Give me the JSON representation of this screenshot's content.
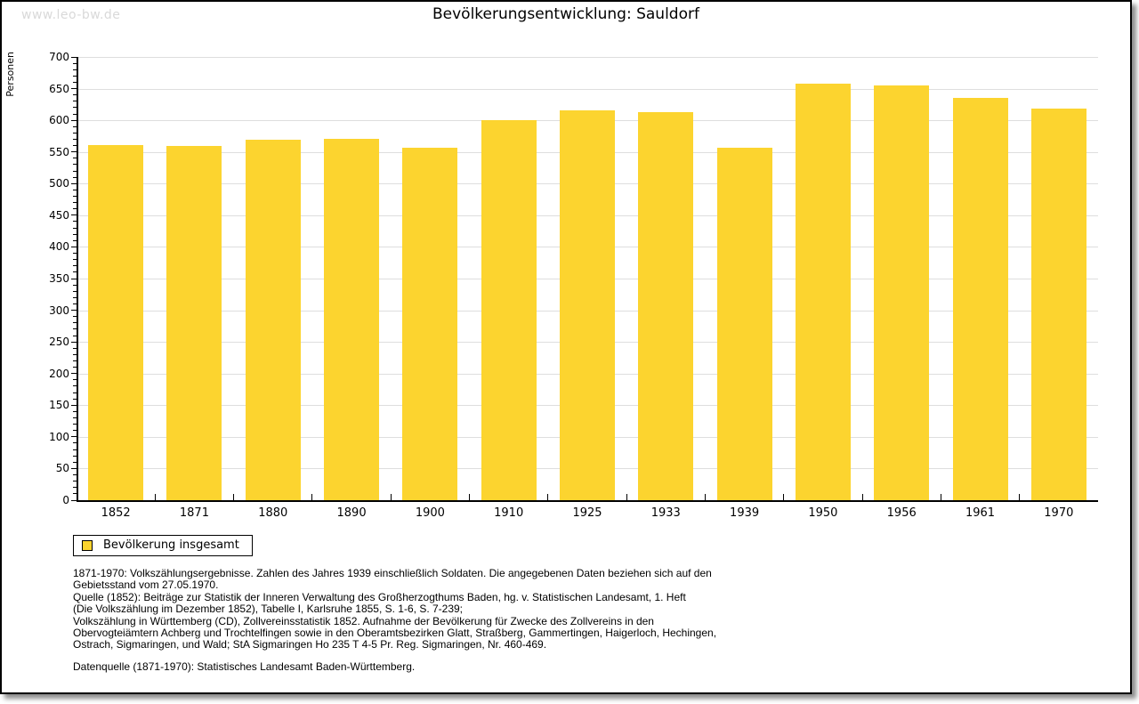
{
  "page": {
    "watermark": "www.leo-bw.de",
    "title": "Bevölkerungsentwicklung: Sauldorf"
  },
  "chart_data": {
    "type": "bar",
    "title": "Bevölkerungsentwicklung: Sauldorf",
    "ylabel": "Personen",
    "xlabel": "",
    "categories": [
      "1852",
      "1871",
      "1880",
      "1890",
      "1900",
      "1910",
      "1925",
      "1933",
      "1939",
      "1950",
      "1956",
      "1961",
      "1970"
    ],
    "series": [
      {
        "name": "Bevölkerung insgesamt",
        "values": [
          561,
          559,
          569,
          571,
          557,
          600,
          616,
          613,
          556,
          658,
          655,
          635,
          618
        ]
      }
    ],
    "ylim": [
      0,
      700
    ],
    "ytick_step": 50,
    "ytick_minor_step": 10,
    "grid": true,
    "legend_position": "below-left"
  },
  "legend": {
    "label": "Bevölkerung insgesamt"
  },
  "footnotes": {
    "lines": [
      "1871-1970: Volkszählungsergebnisse. Zahlen des Jahres 1939 einschließlich Soldaten. Die angegebenen Daten beziehen sich auf den",
      "Gebietsstand vom 27.05.1970.",
      "Quelle (1852): Beiträge zur Statistik der Inneren Verwaltung des Großherzogthums Baden, hg. v. Statistischen Landesamt, 1. Heft",
      "(Die Volkszählung im Dezember 1852), Tabelle I, Karlsruhe 1855, S. 1-6, S. 7-239;",
      "Volkszählung in Württemberg (CD), Zollvereinsstatistik 1852. Aufnahme der Bevölkerung für Zwecke des Zollvereins in den",
      "Obervogteiämtern Achberg und Trochtelfingen sowie in den Oberamtsbezirken Glatt, Straßberg, Gammertingen, Haigerloch, Hechingen,",
      "Ostrach, Sigmaringen, und Wald; StA Sigmaringen Ho 235 T 4-5 Pr. Reg. Sigmaringen, Nr. 460-469."
    ],
    "datasource": "Datenquelle (1871-1970): Statistisches Landesamt Baden-Württemberg."
  },
  "colors": {
    "bar": "#FCD42F",
    "grid": "#DEDEDE",
    "axis": "#000000",
    "watermark": "#D9D9D9"
  }
}
